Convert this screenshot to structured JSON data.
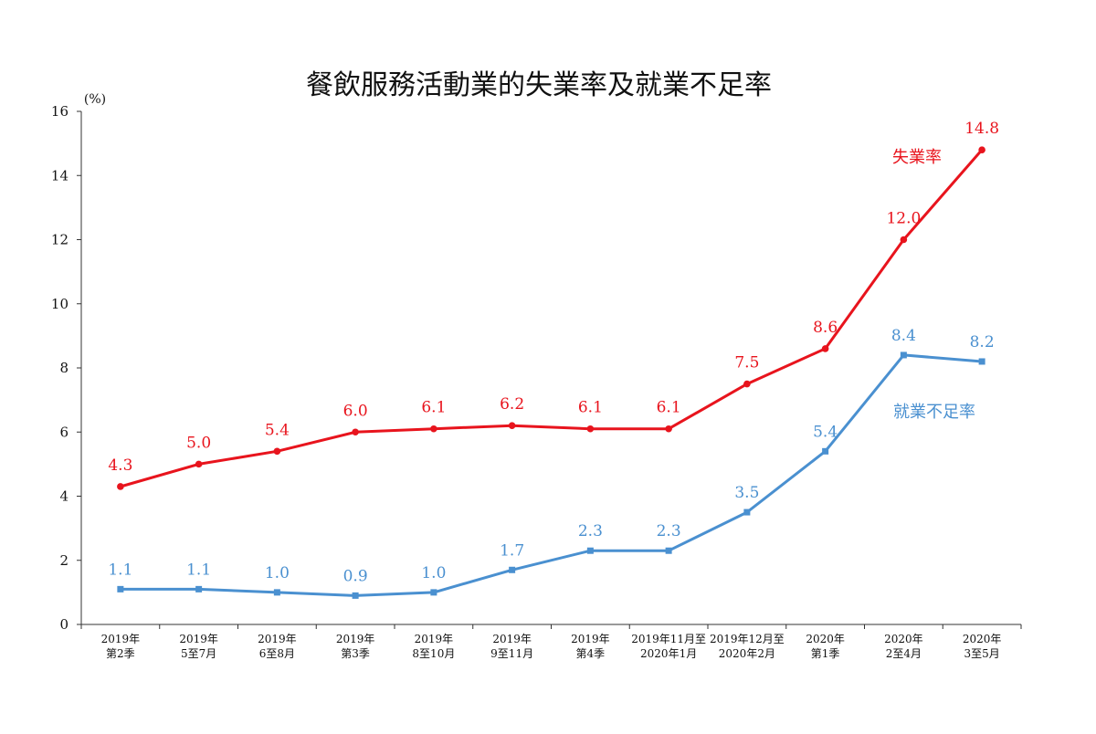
{
  "chart_data": {
    "type": "line",
    "title": "餐飲服務活動業的失業率及就業不足率",
    "ylabel": "(%)",
    "ylim": [
      0,
      16
    ],
    "yticks": [
      0,
      2,
      4,
      6,
      8,
      10,
      12,
      14,
      16
    ],
    "grid": false,
    "categories": [
      [
        "2019年",
        "第2季"
      ],
      [
        "2019年",
        "5至7月"
      ],
      [
        "2019年",
        "6至8月"
      ],
      [
        "2019年",
        "第3季"
      ],
      [
        "2019年",
        "8至10月"
      ],
      [
        "2019年",
        "9至11月"
      ],
      [
        "2019年",
        "第4季"
      ],
      [
        "2019年11月至",
        "2020年1月"
      ],
      [
        "2019年12月至",
        "2020年2月"
      ],
      [
        "2020年",
        "第1季"
      ],
      [
        "2020年",
        "2至4月"
      ],
      [
        "2020年",
        "3至5月"
      ]
    ],
    "series": [
      {
        "name": "失業率",
        "color": "#e8141d",
        "marker": "circle",
        "values": [
          4.3,
          5.0,
          5.4,
          6.0,
          6.1,
          6.2,
          6.1,
          6.1,
          7.5,
          8.6,
          12.0,
          14.8
        ]
      },
      {
        "name": "就業不足率",
        "color": "#4a90d0",
        "marker": "square",
        "values": [
          1.1,
          1.1,
          1.0,
          0.9,
          1.0,
          1.7,
          2.3,
          2.3,
          3.5,
          5.4,
          8.4,
          8.2
        ]
      }
    ]
  }
}
